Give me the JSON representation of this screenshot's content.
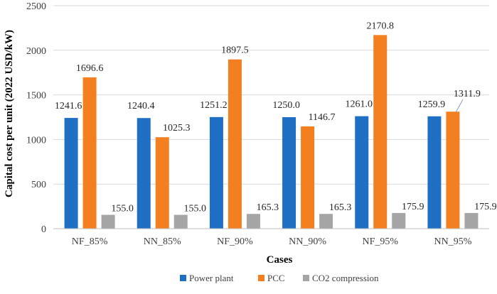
{
  "chart_data": {
    "type": "bar",
    "title": "",
    "xlabel": "Cases",
    "ylabel": "Capital cost per unit (2022 USD/kW)",
    "ylim": [
      0,
      2500
    ],
    "yticks": [
      0,
      500,
      1000,
      1500,
      2000,
      2500
    ],
    "ytick_labels": [
      "0",
      "500",
      "1000",
      "1500",
      "2000",
      "2500"
    ],
    "grid": "horizontal",
    "legend_position": "bottom",
    "categories": [
      "NF_85%",
      "NN_85%",
      "NF_90%",
      "NN_90%",
      "NF_95%",
      "NN_95%"
    ],
    "series": [
      {
        "name": "Power plant",
        "color": "#1f6fc5",
        "values": [
          1241.6,
          1240.4,
          1251.2,
          1250.0,
          1261.0,
          1259.9
        ],
        "labels": [
          "1241.6",
          "1240.4",
          "1251.2",
          "1250.0",
          "1261.0",
          "1259.9"
        ]
      },
      {
        "name": "PCC",
        "color": "#f47f20",
        "values": [
          1696.6,
          1025.3,
          1897.5,
          1146.7,
          2170.8,
          1311.9
        ],
        "labels": [
          "1696.6",
          "1025.3",
          "1897.5",
          "1146.7",
          "2170.8",
          "1311.9"
        ]
      },
      {
        "name": "CO2 compression",
        "color": "#a5a5a5",
        "values": [
          155.0,
          155.0,
          165.3,
          165.3,
          175.9,
          175.9
        ],
        "labels": [
          "155.0",
          "155.0",
          "165.3",
          "165.3",
          "175.9",
          "175.9"
        ]
      }
    ]
  }
}
